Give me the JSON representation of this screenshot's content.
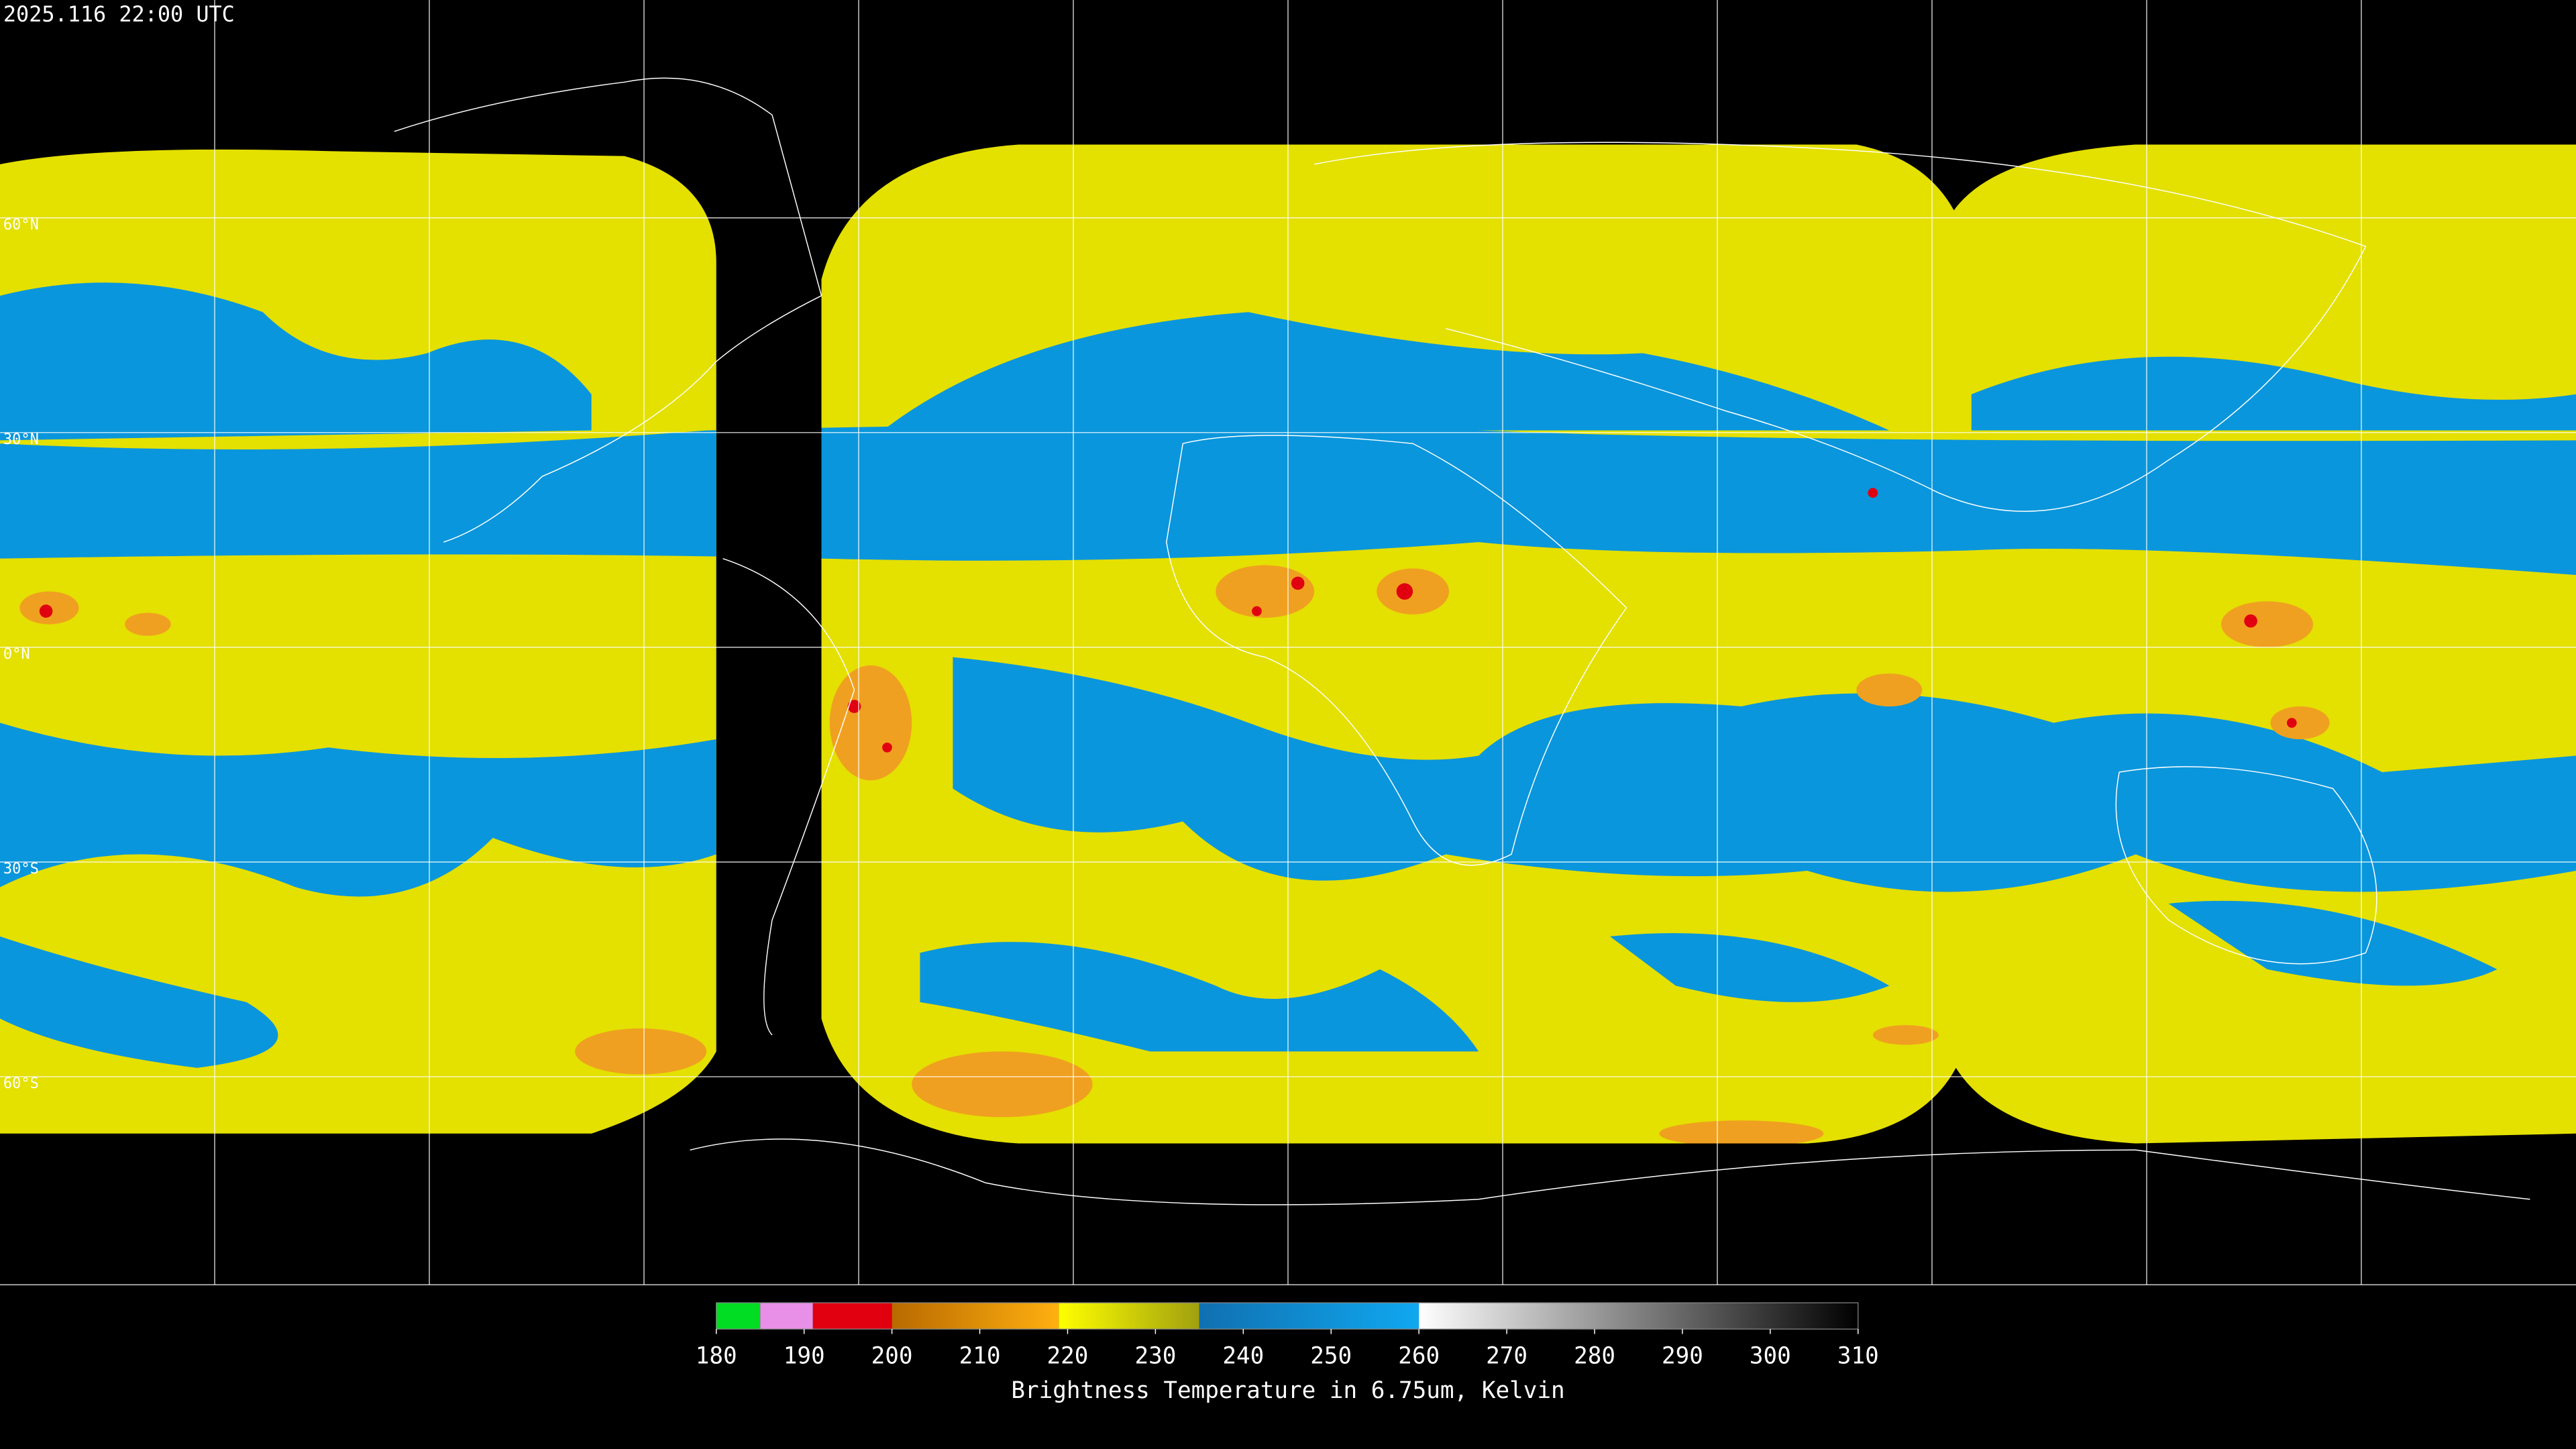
{
  "header": {
    "timestamp": "2025.116 22:00 UTC"
  },
  "map": {
    "lat_labels": [
      "60°N",
      "30°N",
      "0°N",
      "30°S",
      "60°S"
    ]
  },
  "colorbar": {
    "label": "Brightness Temperature in 6.75um, Kelvin",
    "lim": [
      180,
      310
    ],
    "ticks": [
      180,
      190,
      200,
      210,
      220,
      230,
      240,
      250,
      260,
      270,
      280,
      290,
      300,
      310
    ],
    "segments": [
      {
        "from": 180,
        "to": 185,
        "colors": [
          "#00dd22",
          "#00dd22"
        ]
      },
      {
        "from": 185,
        "to": 191,
        "colors": [
          "#e890e8",
          "#e890e8"
        ]
      },
      {
        "from": 191,
        "to": 200,
        "colors": [
          "#e00010",
          "#e00010"
        ]
      },
      {
        "from": 200,
        "to": 219,
        "colors": [
          "#b86a00",
          "#ffb010"
        ]
      },
      {
        "from": 219,
        "to": 235,
        "colors": [
          "#ffff00",
          "#a0a010"
        ]
      },
      {
        "from": 235,
        "to": 260,
        "colors": [
          "#1070b0",
          "#10a8f0"
        ]
      },
      {
        "from": 260,
        "to": 310,
        "colors": [
          "#ffffff",
          "#000000"
        ]
      }
    ]
  }
}
